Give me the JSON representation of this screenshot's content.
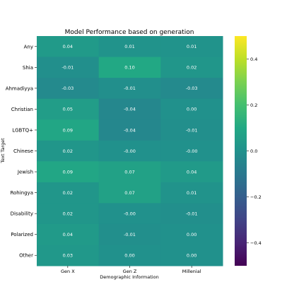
{
  "chart_data": {
    "type": "heatmap",
    "title": "Model Performance based on generation",
    "xlabel": "Demographic Information",
    "ylabel": "Text Target",
    "x_categories": [
      "Gen X",
      "Gen Z",
      "Millenial"
    ],
    "y_categories": [
      "Any",
      "Shia",
      "Ahmadiyya",
      "Christian",
      "LGBTQ+",
      "Chinese",
      "Jewish",
      "Rohingya",
      "Disability",
      "Polarized",
      "Other"
    ],
    "values": [
      [
        0.04,
        0.01,
        0.01
      ],
      [
        -0.01,
        0.1,
        0.02
      ],
      [
        -0.03,
        -0.01,
        -0.03
      ],
      [
        0.05,
        -0.04,
        0.0
      ],
      [
        0.09,
        -0.04,
        -0.01
      ],
      [
        0.02,
        -0.0,
        -0.0
      ],
      [
        0.09,
        0.07,
        0.04
      ],
      [
        0.02,
        0.07,
        0.01
      ],
      [
        0.02,
        -0.0,
        -0.01
      ],
      [
        0.04,
        -0.01,
        0.0
      ],
      [
        0.03,
        0.0,
        0.0
      ]
    ],
    "cell_labels": [
      [
        "0.04",
        "0.01",
        "0.01"
      ],
      [
        "-0.01",
        "0.10",
        "0.02"
      ],
      [
        "-0.03",
        "-0.01",
        "-0.03"
      ],
      [
        "0.05",
        "-0.04",
        "0.00"
      ],
      [
        "0.09",
        "-0.04",
        "-0.01"
      ],
      [
        "0.02",
        "-0.00",
        "-0.00"
      ],
      [
        "0.09",
        "0.07",
        "0.04"
      ],
      [
        "0.02",
        "0.07",
        "0.01"
      ],
      [
        "0.02",
        "-0.00",
        "-0.01"
      ],
      [
        "0.04",
        "-0.01",
        "0.00"
      ],
      [
        "0.03",
        "0.00",
        "0.00"
      ]
    ],
    "colormap": "viridis",
    "vmin": -0.5,
    "vmax": 0.5,
    "colorbar_ticks": [
      0.4,
      0.2,
      0.0,
      -0.2,
      -0.4
    ],
    "colorbar_tick_labels": [
      "0.4",
      "0.2",
      "0.0",
      "−0.2",
      "−0.4"
    ],
    "legend_placement": "right",
    "grid": false
  }
}
